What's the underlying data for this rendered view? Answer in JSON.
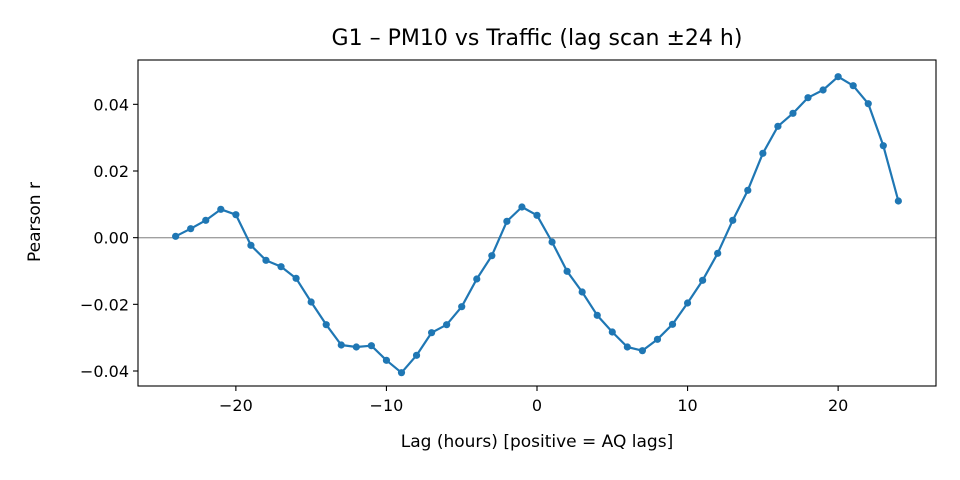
{
  "chart_data": {
    "type": "line",
    "title": "G1 – PM10 vs Traffic (lag scan ±24 h)",
    "xlabel": "Lag (hours)  [positive = AQ lags]",
    "ylabel": "Pearson r",
    "xlim": [
      -26.5,
      26.5
    ],
    "ylim": [
      -0.0445,
      0.0533
    ],
    "xticks": [
      -20,
      -10,
      0,
      10,
      20
    ],
    "xtick_labels": [
      "−20",
      "−10",
      "0",
      "10",
      "20"
    ],
    "yticks": [
      -0.04,
      -0.02,
      0.0,
      0.02,
      0.04
    ],
    "ytick_labels": [
      "−0.04",
      "−0.02",
      "0.00",
      "0.02",
      "0.04"
    ],
    "grid": false,
    "reference_line": {
      "y": 0,
      "color": "#a0a0a0"
    },
    "series": [
      {
        "color": "#1f77b4",
        "marker": "circle",
        "x": [
          -24,
          -23,
          -22,
          -21,
          -20,
          -19,
          -18,
          -17,
          -16,
          -15,
          -14,
          -13,
          -12,
          -11,
          -10,
          -9,
          -8,
          -7,
          -6,
          -5,
          -4,
          -3,
          -2,
          -1,
          0,
          1,
          2,
          3,
          4,
          5,
          6,
          7,
          8,
          9,
          10,
          11,
          12,
          13,
          14,
          15,
          16,
          17,
          18,
          19,
          20,
          21,
          22,
          23,
          24
        ],
        "y": [
          0.0004,
          0.0027,
          0.0052,
          0.0085,
          0.0069,
          -0.0023,
          -0.0068,
          -0.0087,
          -0.0122,
          -0.0193,
          -0.0261,
          -0.0322,
          -0.0328,
          -0.0324,
          -0.0368,
          -0.0405,
          -0.0353,
          -0.0285,
          -0.0261,
          -0.0207,
          -0.0124,
          -0.0054,
          0.0049,
          0.0092,
          0.0067,
          -0.0013,
          -0.0101,
          -0.0163,
          -0.0233,
          -0.0283,
          -0.0328,
          -0.0339,
          -0.0305,
          -0.026,
          -0.0196,
          -0.0128,
          -0.0047,
          0.0052,
          0.0142,
          0.0253,
          0.0334,
          0.0373,
          0.042,
          0.0443,
          0.0483,
          0.0456,
          0.0402,
          0.0276,
          0.011
        ]
      }
    ]
  }
}
